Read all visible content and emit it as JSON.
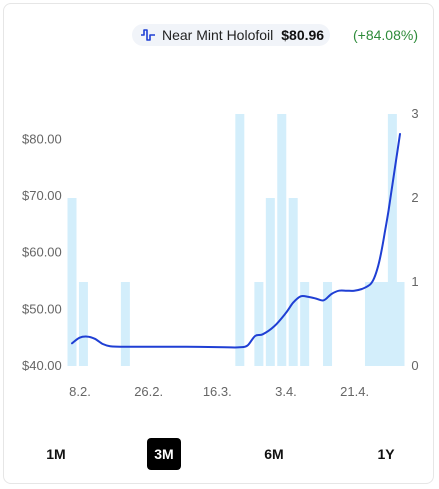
{
  "legend": {
    "variant": "Near Mint Holofoil",
    "price": "$80.96",
    "change": "(+84.08%)",
    "line_color": "#1f3fd4",
    "change_color": "#2e8b3a"
  },
  "ranges": [
    {
      "label": "1M",
      "active": false
    },
    {
      "label": "3M",
      "active": true
    },
    {
      "label": "6M",
      "active": false
    },
    {
      "label": "1Y",
      "active": false
    }
  ],
  "chart_data": {
    "type": "line",
    "x_tick_labels": [
      "8.2.",
      "26.2.",
      "16.3.",
      "3.4.",
      "21.4."
    ],
    "x_tick_days": [
      0,
      18,
      36,
      54,
      72
    ],
    "y_ticks_left": [
      "$80.00",
      "$70.00",
      "$60.00",
      "$50.00",
      "$40.00"
    ],
    "y_tick_values_left": [
      80,
      70,
      60,
      50,
      40
    ],
    "ylim_left": [
      40,
      84.5
    ],
    "y_ticks_right": [
      "3",
      "2",
      "1",
      "0"
    ],
    "y_tick_values_right": [
      3,
      2,
      1,
      0
    ],
    "ylim_right": [
      0,
      3
    ],
    "series": [
      {
        "name": "Near Mint Holofoil",
        "color": "#1f3fd4",
        "x": [
          0,
          2,
          4,
          6,
          8,
          10,
          14,
          20,
          30,
          40,
          44,
          46,
          48,
          50,
          53,
          56,
          58,
          60,
          62,
          64,
          66,
          68,
          70,
          72,
          74,
          76,
          78,
          79,
          80,
          81,
          82,
          83,
          84,
          85,
          86
        ],
        "values": [
          44.0,
          45.0,
          45.2,
          44.8,
          43.9,
          43.5,
          43.4,
          43.4,
          43.4,
          43.3,
          43.3,
          43.6,
          45.3,
          45.6,
          47.0,
          49.3,
          51.2,
          52.3,
          52.2,
          51.9,
          51.6,
          52.7,
          53.3,
          53.3,
          53.3,
          53.6,
          54.3,
          55.2,
          57.0,
          59.8,
          63.5,
          67.5,
          72.0,
          76.5,
          80.96
        ]
      }
    ],
    "volume_bars": {
      "x": [
        0,
        3,
        14,
        44,
        49,
        52,
        55,
        58,
        61,
        67,
        78,
        80,
        82,
        84,
        86
      ],
      "values": [
        2,
        1,
        1,
        3,
        1,
        2,
        3,
        2,
        1,
        1,
        1,
        1,
        1,
        3,
        1
      ],
      "color": "#d3eefb"
    }
  }
}
